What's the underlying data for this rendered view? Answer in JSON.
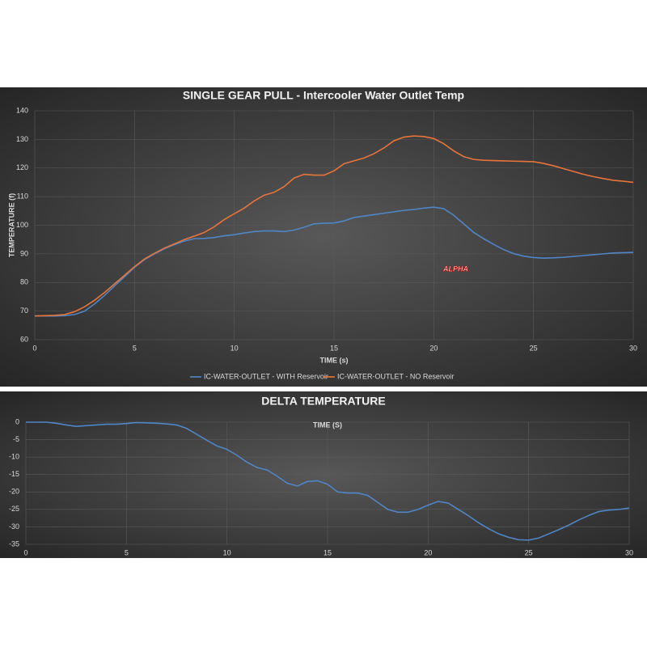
{
  "chart_data": [
    {
      "type": "line",
      "title": "SINGLE GEAR PULL - Intercooler Water Outlet Temp",
      "xlabel": "TIME (s)",
      "ylabel": "TEMPERATURE (f)",
      "annotation": "ALPHA",
      "x": [
        0,
        0.5,
        1,
        1.5,
        2,
        2.5,
        3,
        3.5,
        4,
        4.5,
        5,
        5.5,
        6,
        6.5,
        7,
        7.5,
        8,
        8.5,
        9,
        9.5,
        10,
        10.5,
        11,
        11.5,
        12,
        12.5,
        13,
        13.5,
        14,
        14.5,
        15,
        15.5,
        16,
        16.5,
        17,
        17.5,
        18,
        18.5,
        19,
        19.5,
        20,
        20.5,
        21,
        21.5,
        22,
        22.5,
        23,
        23.5,
        24,
        24.5,
        25,
        25.5,
        26,
        26.5,
        27,
        27.5,
        28,
        28.5,
        29,
        29.5,
        30
      ],
      "series": [
        {
          "name": "IC-WATER-OUTLET - WITH Reservoir",
          "color": "#4f86c6",
          "values": [
            68.3,
            68.3,
            68.3,
            68.4,
            68.8,
            70,
            72.5,
            75.5,
            78.8,
            82,
            85.3,
            88,
            90,
            91.8,
            93.2,
            94.5,
            95.3,
            95.4,
            95.7,
            96.3,
            96.7,
            97.3,
            97.8,
            98,
            98,
            97.8,
            98.3,
            99.3,
            100.5,
            100.7,
            100.8,
            101.5,
            102.7,
            103.2,
            103.7,
            104.2,
            104.7,
            105.2,
            105.5,
            106,
            106.3,
            105.8,
            103.5,
            100.5,
            97.5,
            95.3,
            93.3,
            91.5,
            90.1,
            89.2,
            88.7,
            88.5,
            88.6,
            88.8,
            89.1,
            89.4,
            89.7,
            90,
            90.3,
            90.4,
            90.5
          ]
        },
        {
          "name": "IC-WATER-OUTLET - NO Reservoir",
          "color": "#e8743b",
          "values": [
            68.3,
            68.4,
            68.5,
            68.8,
            69.8,
            71.5,
            73.8,
            76.5,
            79.5,
            82.5,
            85.5,
            88.2,
            90.2,
            92,
            93.5,
            95,
            96.2,
            97.5,
            99.5,
            102,
            104,
            106,
            108.5,
            110.5,
            111.5,
            113.5,
            116.5,
            117.8,
            117.5,
            117.5,
            119,
            121.5,
            122.5,
            123.5,
            125,
            127,
            129.5,
            130.8,
            131.2,
            131,
            130.3,
            128.5,
            126,
            124,
            123,
            122.7,
            122.6,
            122.5,
            122.4,
            122.3,
            122.2,
            121.6,
            120.8,
            119.8,
            118.8,
            117.8,
            117,
            116.3,
            115.7,
            115.4,
            115
          ]
        }
      ],
      "xlim": [
        0,
        30
      ],
      "xticks": [
        0,
        5,
        10,
        15,
        20,
        25,
        30
      ],
      "ylim": [
        60,
        140
      ],
      "yticks": [
        60,
        70,
        80,
        90,
        100,
        110,
        120,
        130,
        140
      ],
      "grid": true,
      "legend": "bottom"
    },
    {
      "type": "line",
      "title": "DELTA TEMPERATURE",
      "xlabel": "TIME (S)",
      "x": [
        0,
        0.5,
        1,
        1.5,
        2,
        2.5,
        3,
        3.5,
        4,
        4.5,
        5,
        5.5,
        6,
        6.5,
        7,
        7.5,
        8,
        8.5,
        9,
        9.5,
        10,
        10.5,
        11,
        11.5,
        12,
        12.5,
        13,
        13.5,
        14,
        14.5,
        15,
        15.5,
        16,
        16.5,
        17,
        17.5,
        18,
        18.5,
        19,
        19.5,
        20,
        20.5,
        21,
        21.5,
        22,
        22.5,
        23,
        23.5,
        24,
        24.5,
        25,
        25.5,
        26,
        26.5,
        27,
        27.5,
        28,
        28.5,
        29,
        29.5,
        30
      ],
      "series": [
        {
          "color": "#4f86c6",
          "values": [
            0,
            0,
            0,
            -0.3,
            -0.8,
            -1.2,
            -1,
            -0.8,
            -0.6,
            -0.6,
            -0.4,
            -0.1,
            -0.2,
            -0.3,
            -0.5,
            -0.8,
            -1.8,
            -3.5,
            -5.2,
            -6.8,
            -7.8,
            -9.5,
            -11.5,
            -13,
            -13.7,
            -15.5,
            -17.5,
            -18.3,
            -17,
            -16.8,
            -17.8,
            -20,
            -20.3,
            -20.3,
            -21,
            -23,
            -25,
            -25.8,
            -25.8,
            -25,
            -23.8,
            -22.7,
            -23.2,
            -25,
            -26.8,
            -28.8,
            -30.5,
            -32,
            -33,
            -33.7,
            -33.8,
            -33.2,
            -32,
            -30.8,
            -29.5,
            -28,
            -26.7,
            -25.6,
            -25.2,
            -25,
            -24.6
          ]
        }
      ],
      "xlim": [
        0,
        30
      ],
      "xticks": [
        0,
        5,
        10,
        15,
        20,
        25,
        30
      ],
      "ylim": [
        -35,
        0
      ],
      "yticks": [
        0,
        -5,
        -10,
        -15,
        -20,
        -25,
        -30,
        -35
      ],
      "grid": true
    }
  ]
}
